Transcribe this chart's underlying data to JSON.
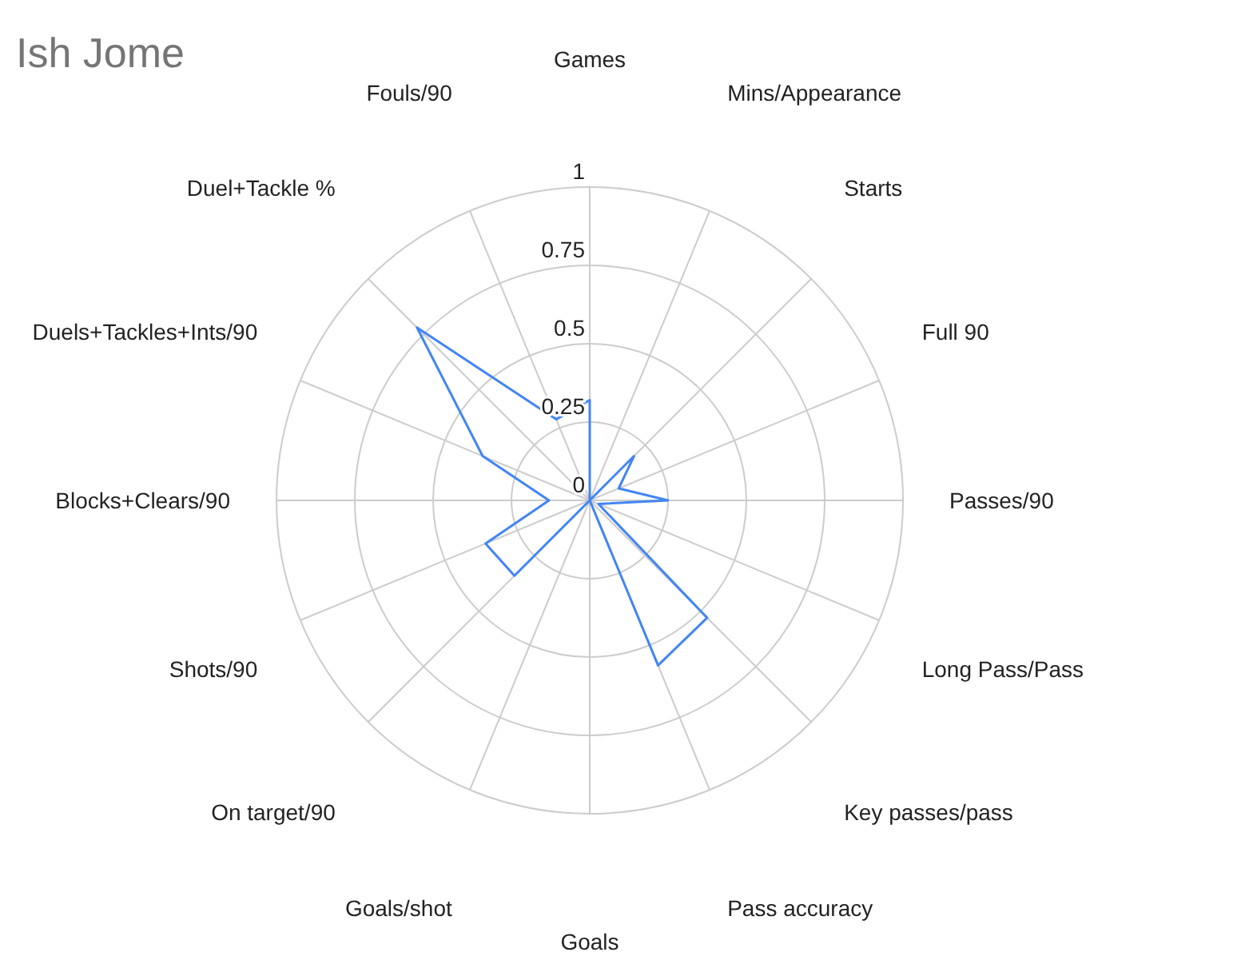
{
  "chart_data": {
    "type": "radar",
    "title": "Ish Jome",
    "categories": [
      "Games",
      "Mins/Appearance",
      "Starts",
      "Full 90",
      "Passes/90",
      "Long Pass/Pass",
      "Key passes/pass",
      "Pass accuracy",
      "Goals",
      "Goals/shot",
      "On target/90",
      "Shots/90",
      "Blocks+Clears/90",
      "Duels+Tackles+Ints/90",
      "Duel+Tackle %",
      "Fouls/90"
    ],
    "series": [
      {
        "color": "#4285f4",
        "values": [
          0.32,
          0,
          0.2,
          0.1,
          0.25,
          0.03,
          0.53,
          0.57,
          0,
          0,
          0.34,
          0.36,
          0.13,
          0.37,
          0.78,
          0.28
        ]
      }
    ],
    "ylim": [
      0,
      1
    ],
    "yticks": [
      0,
      0.25,
      0.5,
      0.75,
      1
    ],
    "grid": true
  }
}
